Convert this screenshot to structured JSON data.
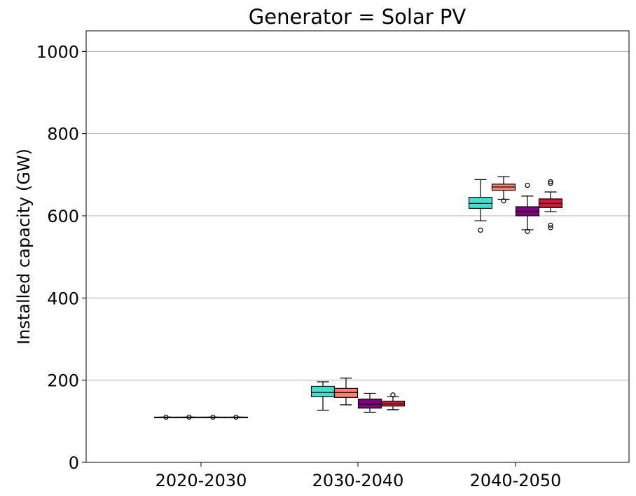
{
  "chart_data": {
    "type": "box",
    "title": "Generator = Solar PV",
    "xlabel": "",
    "ylabel": "Installed capacity (GW)",
    "ylim": [
      0,
      1050
    ],
    "yticks": [
      0,
      200,
      400,
      600,
      800,
      1000
    ],
    "grid": "y",
    "categories": [
      "2020-2030",
      "2030-2040",
      "2040-2050"
    ],
    "series": [
      {
        "color": "#40E0D0",
        "boxes": [
          {
            "whislo": 110,
            "q1": 110,
            "med": 110,
            "q3": 110,
            "whishi": 110,
            "fliers": [
              110
            ]
          },
          {
            "whislo": 127,
            "q1": 160,
            "med": 170,
            "q3": 185,
            "whishi": 196,
            "fliers": []
          },
          {
            "whislo": 588,
            "q1": 618,
            "med": 630,
            "q3": 645,
            "whishi": 688,
            "fliers": [
              565
            ]
          }
        ]
      },
      {
        "color": "#FA8072",
        "boxes": [
          {
            "whislo": 110,
            "q1": 110,
            "med": 110,
            "q3": 110,
            "whishi": 110,
            "fliers": [
              110
            ]
          },
          {
            "whislo": 140,
            "q1": 158,
            "med": 170,
            "q3": 180,
            "whishi": 205,
            "fliers": []
          },
          {
            "whislo": 640,
            "q1": 662,
            "med": 670,
            "q3": 677,
            "whishi": 695,
            "fliers": [
              636
            ]
          }
        ]
      },
      {
        "color": "#800080",
        "boxes": [
          {
            "whislo": 110,
            "q1": 110,
            "med": 110,
            "q3": 110,
            "whishi": 110,
            "fliers": [
              110
            ]
          },
          {
            "whislo": 122,
            "q1": 132,
            "med": 141,
            "q3": 154,
            "whishi": 168,
            "fliers": []
          },
          {
            "whislo": 566,
            "q1": 600,
            "med": 610,
            "q3": 622,
            "whishi": 648,
            "fliers": [
              674,
              562
            ]
          }
        ]
      },
      {
        "color": "#DC143C",
        "boxes": [
          {
            "whislo": 110,
            "q1": 110,
            "med": 110,
            "q3": 110,
            "whishi": 110,
            "fliers": [
              110
            ]
          },
          {
            "whislo": 128,
            "q1": 137,
            "med": 142,
            "q3": 149,
            "whishi": 160,
            "fliers": [
              164
            ]
          },
          {
            "whislo": 610,
            "q1": 620,
            "med": 630,
            "q3": 641,
            "whishi": 658,
            "fliers": [
              683,
              679,
              577,
              571
            ]
          }
        ]
      }
    ]
  }
}
